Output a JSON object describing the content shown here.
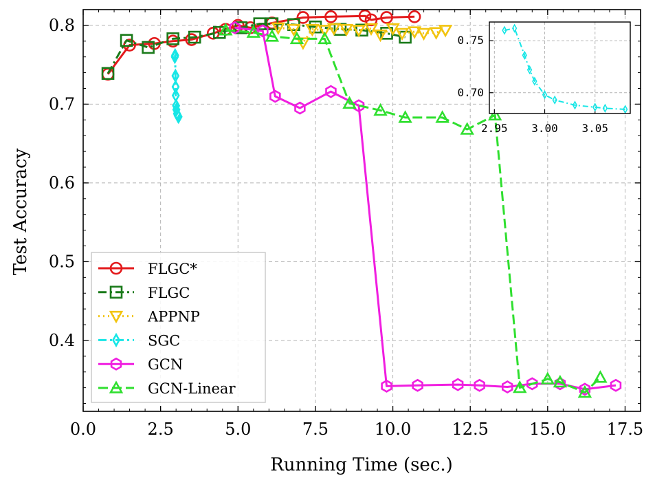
{
  "chart_data": {
    "type": "line",
    "title": "",
    "xlabel": "Running Time (sec.)",
    "ylabel": "Test Accuracy",
    "xlim": [
      0,
      18.0
    ],
    "ylim": [
      0.31,
      0.82
    ],
    "xticks": [
      0.0,
      2.5,
      5.0,
      7.5,
      10.0,
      12.5,
      15.0,
      17.5
    ],
    "xtick_labels": [
      "0.0",
      "2.5",
      "5.0",
      "7.5",
      "10.0",
      "12.5",
      "15.0",
      "17.5"
    ],
    "yticks": [
      0.4,
      0.5,
      0.6,
      0.7,
      0.8
    ],
    "ytick_labels": [
      "0.4",
      "0.5",
      "0.6",
      "0.7",
      "0.8"
    ],
    "grid": true,
    "legend_position": "lower-left",
    "series": [
      {
        "name": "FLGC*",
        "color": "#e31a1c",
        "marker": "circle",
        "dash": "solid",
        "x": [
          0.8,
          1.5,
          2.3,
          2.9,
          3.5,
          4.2,
          4.6,
          5.0,
          5.4,
          6.1,
          7.1,
          8.0,
          9.1,
          9.3,
          9.8,
          10.7
        ],
        "y": [
          0.738,
          0.775,
          0.777,
          0.78,
          0.782,
          0.79,
          0.795,
          0.8,
          0.797,
          0.803,
          0.81,
          0.811,
          0.812,
          0.807,
          0.81,
          0.811
        ]
      },
      {
        "name": "FLGC",
        "color": "#1a7a1a",
        "marker": "square",
        "dash": "dashdot",
        "x": [
          0.8,
          1.4,
          2.1,
          2.9,
          3.6,
          4.4,
          5.1,
          5.7,
          6.1,
          6.8,
          7.5,
          8.3,
          9.0,
          9.8,
          10.4
        ],
        "y": [
          0.739,
          0.781,
          0.772,
          0.783,
          0.785,
          0.791,
          0.797,
          0.802,
          0.802,
          0.801,
          0.798,
          0.795,
          0.794,
          0.79,
          0.785
        ]
      },
      {
        "name": "APPNP",
        "color": "#f2c40f",
        "marker": "triangle-down",
        "dash": "dotted",
        "x": [
          6.3,
          6.8,
          7.1,
          7.4,
          7.8,
          8.1,
          8.5,
          8.9,
          9.3,
          9.6,
          10.0,
          10.3,
          10.7,
          11.0,
          11.4,
          11.7
        ],
        "y": [
          0.797,
          0.795,
          0.778,
          0.795,
          0.794,
          0.796,
          0.795,
          0.794,
          0.796,
          0.788,
          0.796,
          0.79,
          0.792,
          0.79,
          0.791,
          0.794
        ]
      },
      {
        "name": "SGC",
        "color": "#17e6e6",
        "marker": "thin-diamond",
        "dash": "dashdot",
        "x": [
          2.96,
          2.97,
          2.98,
          2.985,
          2.99,
          3.0,
          3.01,
          3.03,
          3.05,
          3.06,
          3.08
        ],
        "y": [
          0.76,
          0.762,
          0.736,
          0.722,
          0.711,
          0.698,
          0.693,
          0.688,
          0.686,
          0.685,
          0.684
        ]
      },
      {
        "name": "GCN",
        "color": "#f01ee0",
        "marker": "hexagon",
        "dash": "solid",
        "x": [
          4.9,
          5.8,
          6.2,
          7.0,
          8.0,
          8.9,
          9.8,
          10.8,
          12.1,
          12.8,
          13.7,
          14.5,
          15.4,
          16.2,
          17.2
        ],
        "y": [
          0.797,
          0.793,
          0.71,
          0.695,
          0.716,
          0.698,
          0.342,
          0.343,
          0.344,
          0.343,
          0.341,
          0.345,
          0.345,
          0.338,
          0.343
        ]
      },
      {
        "name": "GCN-Linear",
        "color": "#2fdf2f",
        "marker": "triangle-up",
        "dash": "dashed",
        "x": [
          4.6,
          5.5,
          6.1,
          6.9,
          7.8,
          8.6,
          9.6,
          10.4,
          11.6,
          12.4,
          13.3,
          14.1,
          15.0,
          15.4,
          16.2,
          16.7
        ],
        "y": [
          0.794,
          0.791,
          0.786,
          0.783,
          0.783,
          0.701,
          0.692,
          0.683,
          0.683,
          0.668,
          0.686,
          0.34,
          0.351,
          0.347,
          0.334,
          0.353
        ]
      }
    ],
    "inset": {
      "series": "SGC",
      "xlim": [
        2.945,
        3.085
      ],
      "ylim": [
        0.68,
        0.768
      ],
      "xticks": [
        2.95,
        3.0,
        3.05
      ],
      "xtick_labels": [
        "2.95",
        "3.00",
        "3.05"
      ],
      "yticks": [
        0.7,
        0.75
      ],
      "ytick_labels": [
        "0.70",
        "0.75"
      ],
      "grid": true
    }
  }
}
